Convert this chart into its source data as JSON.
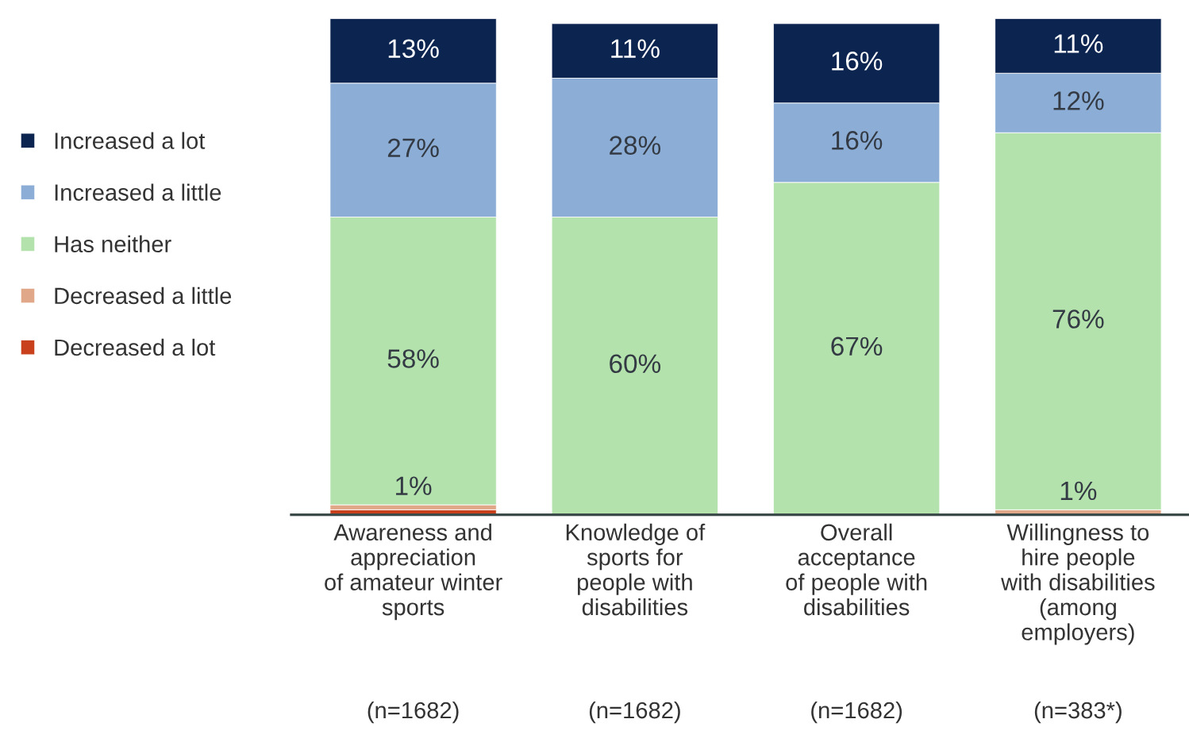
{
  "chart_data": {
    "type": "bar",
    "stacked": true,
    "categories": [
      "Awareness and\nappreciation\nof amateur winter\nsports",
      "Knowledge of\nsports for\npeople with\ndisabilities",
      "Overall\nacceptance\nof people with\ndisabilities",
      "Willingness to\nhire people\nwith disabilities\n(among\nemployers)"
    ],
    "ylim": [
      0,
      100
    ],
    "tick_labels": "x",
    "legend": "left",
    "grid": false,
    "series": [
      {
        "name": "Decreased a lot",
        "color": "#c8401c",
        "values": [
          1,
          0,
          0,
          0
        ],
        "value_labels": [
          null,
          null,
          null,
          null
        ]
      },
      {
        "name": "Decreased a little",
        "color": "#e0a888",
        "values": [
          1,
          0,
          0,
          1
        ],
        "value_labels": [
          "1%",
          null,
          null,
          "1%"
        ]
      },
      {
        "name": "Has neither",
        "color": "#b4e2ac",
        "values": [
          58,
          60,
          67,
          76
        ],
        "value_labels": [
          "58%",
          "60%",
          "67%",
          "76%"
        ]
      },
      {
        "name": "Increased a little",
        "color": "#8caed6",
        "values": [
          27,
          28,
          16,
          12
        ],
        "value_labels": [
          "27%",
          "28%",
          "16%",
          "12%"
        ]
      },
      {
        "name": "Increased a lot",
        "color": "#0c2450",
        "values": [
          13,
          11,
          16,
          11
        ],
        "value_labels": [
          "13%",
          "11%",
          "16%",
          "11%"
        ]
      }
    ],
    "annotations": [
      "(n=1682)",
      "(n=1682)",
      "(n=1682)",
      "(n=383*)"
    ]
  }
}
